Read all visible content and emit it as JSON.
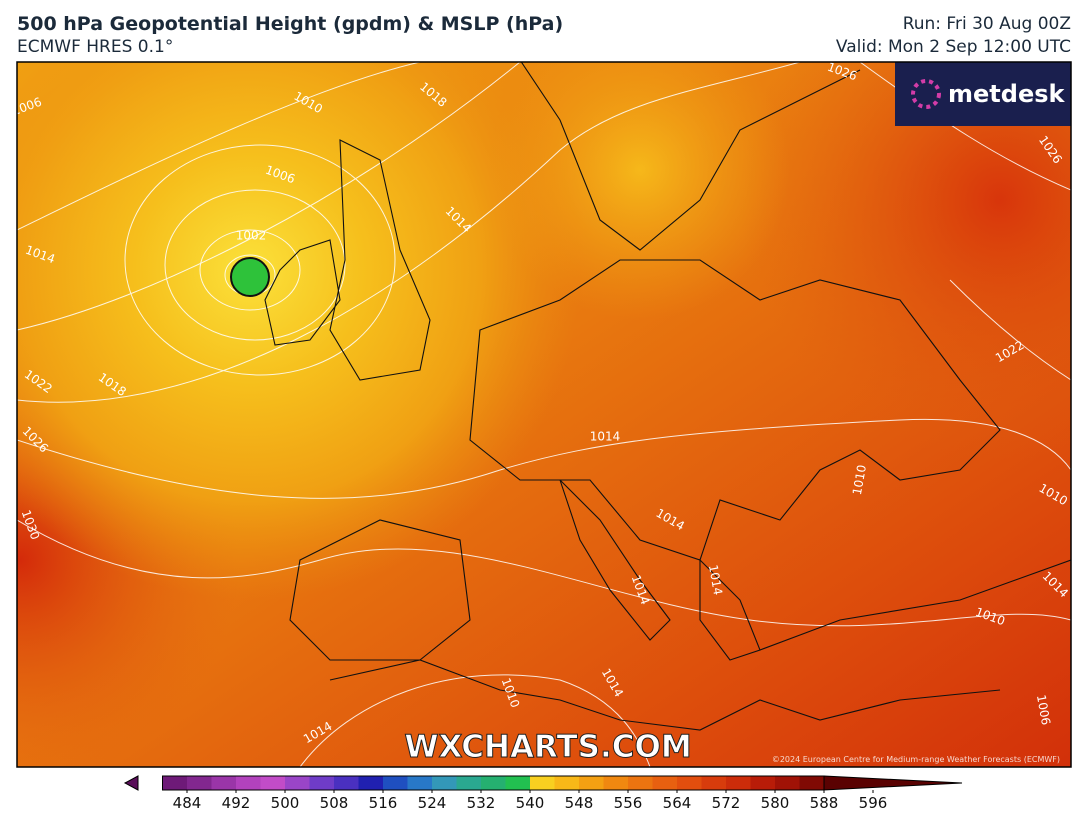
{
  "header": {
    "title": "500 hPa Geopotential Height (gpdm) & MSLP (hPa)",
    "model": "ECMWF HRES 0.1°",
    "run": "Run: Fri 30 Aug 00Z",
    "valid": "Valid: Mon 2 Sep 12:00 UTC"
  },
  "map": {
    "logo": "metdesk",
    "watermark": "WXCHARTS.COM",
    "credit": "©2024 European Centre for Medium-range Weather Forecasts (ECMWF)",
    "isobar_labels": [
      "1006",
      "1010",
      "1018",
      "1026",
      "1026",
      "1006",
      "1014",
      "1002",
      "1014",
      "1022",
      "1018",
      "1026",
      "1022",
      "1014",
      "1010",
      "1010",
      "1030",
      "1014",
      "1014",
      "1014",
      "1014",
      "1010",
      "1010",
      "1014",
      "1006",
      "1014"
    ]
  },
  "colorbar": {
    "ticks": [
      484,
      492,
      500,
      508,
      516,
      524,
      532,
      540,
      548,
      556,
      564,
      572,
      580,
      588,
      596
    ]
  }
}
